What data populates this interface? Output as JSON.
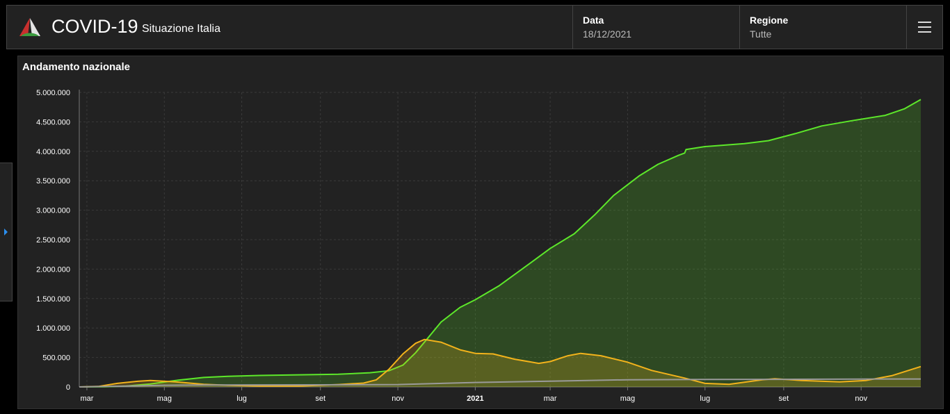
{
  "header": {
    "title": "COVID-19",
    "subtitle": "Situazione Italia",
    "date_label": "Data",
    "date_value": "18/12/2021",
    "region_label": "Regione",
    "region_value": "Tutte"
  },
  "icons": {
    "logo": "italy-logo-icon",
    "menu": "hamburger-menu-icon",
    "side_toggle": "chevron-right-icon"
  },
  "colors": {
    "background": "#222222",
    "recovered": "#5de82a",
    "positive": "#f3b31b",
    "deceased": "#9a9a9a",
    "accent": "#2b8ff0"
  },
  "panel": {
    "title": "Andamento nazionale"
  },
  "chart_data": {
    "type": "area",
    "title": "Andamento nazionale",
    "ylim": [
      0,
      5000000
    ],
    "yticks": [
      0,
      500000,
      1000000,
      1500000,
      2000000,
      2500000,
      3000000,
      3500000,
      4000000,
      4500000,
      5000000
    ],
    "ytick_labels": [
      "0",
      "500.000",
      "1.000.000",
      "1.500.000",
      "2.000.000",
      "2.500.000",
      "3.000.000",
      "3.500.000",
      "4.000.000",
      "4.500.000",
      "5.000.000"
    ],
    "xlim": [
      "2020-02-24",
      "2021-12-18"
    ],
    "xticks": [
      {
        "date": "2020-03-01",
        "label": "mar",
        "bold": false
      },
      {
        "date": "2020-05-01",
        "label": "mag",
        "bold": false
      },
      {
        "date": "2020-07-01",
        "label": "lug",
        "bold": false
      },
      {
        "date": "2020-09-01",
        "label": "set",
        "bold": false
      },
      {
        "date": "2020-11-01",
        "label": "nov",
        "bold": false
      },
      {
        "date": "2021-01-01",
        "label": "2021",
        "bold": true
      },
      {
        "date": "2021-03-01",
        "label": "mar",
        "bold": false
      },
      {
        "date": "2021-05-01",
        "label": "mag",
        "bold": false
      },
      {
        "date": "2021-07-01",
        "label": "lug",
        "bold": false
      },
      {
        "date": "2021-09-01",
        "label": "set",
        "bold": false
      },
      {
        "date": "2021-11-01",
        "label": "nov",
        "bold": false
      }
    ],
    "grid": true,
    "series": [
      {
        "color": "#5de82a",
        "fill": true,
        "points": [
          [
            "2020-02-24",
            0
          ],
          [
            "2020-03-15",
            3000
          ],
          [
            "2020-04-01",
            15000
          ],
          [
            "2020-04-20",
            50000
          ],
          [
            "2020-05-10",
            110000
          ],
          [
            "2020-06-01",
            160000
          ],
          [
            "2020-06-20",
            180000
          ],
          [
            "2020-07-15",
            195000
          ],
          [
            "2020-08-15",
            205000
          ],
          [
            "2020-09-15",
            215000
          ],
          [
            "2020-10-10",
            240000
          ],
          [
            "2020-10-25",
            275000
          ],
          [
            "2020-11-05",
            370000
          ],
          [
            "2020-11-15",
            580000
          ],
          [
            "2020-11-25",
            840000
          ],
          [
            "2020-12-05",
            1100000
          ],
          [
            "2020-12-20",
            1350000
          ],
          [
            "2021-01-01",
            1480000
          ],
          [
            "2021-01-20",
            1720000
          ],
          [
            "2021-02-10",
            2050000
          ],
          [
            "2021-03-01",
            2350000
          ],
          [
            "2021-03-20",
            2600000
          ],
          [
            "2021-04-05",
            2920000
          ],
          [
            "2021-04-20",
            3250000
          ],
          [
            "2021-05-10",
            3580000
          ],
          [
            "2021-05-25",
            3780000
          ],
          [
            "2021-06-10",
            3930000
          ],
          [
            "2021-06-15",
            3970000
          ],
          [
            "2021-06-16",
            4030000
          ],
          [
            "2021-07-01",
            4080000
          ],
          [
            "2021-08-01",
            4130000
          ],
          [
            "2021-08-20",
            4180000
          ],
          [
            "2021-09-10",
            4300000
          ],
          [
            "2021-10-01",
            4430000
          ],
          [
            "2021-10-25",
            4520000
          ],
          [
            "2021-11-20",
            4610000
          ],
          [
            "2021-12-05",
            4720000
          ],
          [
            "2021-12-18",
            4880000
          ]
        ]
      },
      {
        "color": "#f3b31b",
        "fill": true,
        "points": [
          [
            "2020-02-24",
            0
          ],
          [
            "2020-03-10",
            8000
          ],
          [
            "2020-03-25",
            60000
          ],
          [
            "2020-04-10",
            95000
          ],
          [
            "2020-04-20",
            108000
          ],
          [
            "2020-05-10",
            85000
          ],
          [
            "2020-06-01",
            45000
          ],
          [
            "2020-06-20",
            28000
          ],
          [
            "2020-07-15",
            14000
          ],
          [
            "2020-08-15",
            15000
          ],
          [
            "2020-09-15",
            40000
          ],
          [
            "2020-10-05",
            65000
          ],
          [
            "2020-10-15",
            120000
          ],
          [
            "2020-10-25",
            300000
          ],
          [
            "2020-11-05",
            560000
          ],
          [
            "2020-11-15",
            740000
          ],
          [
            "2020-11-22",
            805000
          ],
          [
            "2020-12-05",
            760000
          ],
          [
            "2020-12-20",
            630000
          ],
          [
            "2021-01-01",
            570000
          ],
          [
            "2021-01-15",
            560000
          ],
          [
            "2021-02-01",
            470000
          ],
          [
            "2021-02-20",
            400000
          ],
          [
            "2021-03-01",
            430000
          ],
          [
            "2021-03-15",
            530000
          ],
          [
            "2021-03-25",
            570000
          ],
          [
            "2021-04-10",
            530000
          ],
          [
            "2021-05-01",
            420000
          ],
          [
            "2021-05-20",
            280000
          ],
          [
            "2021-06-15",
            150000
          ],
          [
            "2021-07-01",
            60000
          ],
          [
            "2021-07-20",
            45000
          ],
          [
            "2021-08-15",
            120000
          ],
          [
            "2021-08-25",
            138000
          ],
          [
            "2021-09-15",
            110000
          ],
          [
            "2021-10-15",
            85000
          ],
          [
            "2021-11-05",
            110000
          ],
          [
            "2021-11-25",
            190000
          ],
          [
            "2021-12-18",
            345000
          ]
        ]
      },
      {
        "color": "#9a9a9a",
        "fill": false,
        "points": [
          [
            "2020-02-24",
            0
          ],
          [
            "2020-04-01",
            14000
          ],
          [
            "2020-05-01",
            28000
          ],
          [
            "2020-06-01",
            33000
          ],
          [
            "2020-09-01",
            35500
          ],
          [
            "2020-11-01",
            40000
          ],
          [
            "2021-01-01",
            75000
          ],
          [
            "2021-03-01",
            97000
          ],
          [
            "2021-05-01",
            122000
          ],
          [
            "2021-07-01",
            127000
          ],
          [
            "2021-09-01",
            129000
          ],
          [
            "2021-11-01",
            133000
          ],
          [
            "2021-12-18",
            135000
          ]
        ]
      }
    ]
  }
}
